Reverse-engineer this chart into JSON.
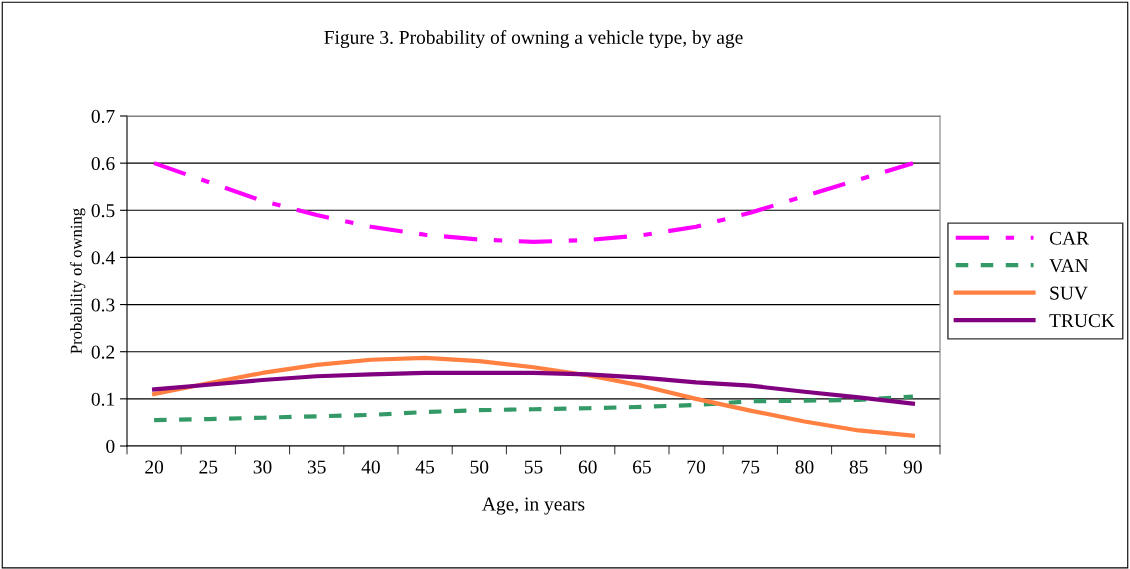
{
  "chart_data": {
    "type": "line",
    "title": "Figure 3. Probability of owning a vehicle type, by age",
    "xlabel": "Age, in years",
    "ylabel": "Probability of owning",
    "categories": [
      "20",
      "25",
      "30",
      "35",
      "40",
      "45",
      "50",
      "55",
      "60",
      "65",
      "70",
      "75",
      "80",
      "85",
      "90"
    ],
    "series": [
      {
        "name": "CAR",
        "color": "#ff00ff",
        "line_style": "dashdot",
        "values": [
          0.6,
          0.56,
          0.52,
          0.49,
          0.465,
          0.448,
          0.438,
          0.433,
          0.437,
          0.447,
          0.465,
          0.495,
          0.53,
          0.565,
          0.6
        ]
      },
      {
        "name": "VAN",
        "color": "#339966",
        "line_style": "dashed",
        "values": [
          0.055,
          0.057,
          0.06,
          0.063,
          0.066,
          0.072,
          0.076,
          0.078,
          0.08,
          0.083,
          0.087,
          0.095,
          0.096,
          0.098,
          0.105
        ]
      },
      {
        "name": "SUV",
        "color": "#ff8040",
        "line_style": "solid",
        "values": [
          0.11,
          0.133,
          0.155,
          0.172,
          0.183,
          0.187,
          0.18,
          0.167,
          0.15,
          0.128,
          0.1,
          0.075,
          0.052,
          0.033,
          0.022
        ]
      },
      {
        "name": "TRUCK",
        "color": "#800080",
        "line_style": "solid",
        "values": [
          0.12,
          0.13,
          0.14,
          0.148,
          0.152,
          0.155,
          0.155,
          0.155,
          0.152,
          0.145,
          0.135,
          0.128,
          0.115,
          0.103,
          0.09
        ]
      }
    ],
    "ylim": [
      0,
      0.7
    ],
    "yticks": [
      0,
      0.1,
      0.2,
      0.3,
      0.4,
      0.5,
      0.6,
      0.7
    ],
    "grid": "y",
    "legend": "right",
    "marker": "none"
  }
}
